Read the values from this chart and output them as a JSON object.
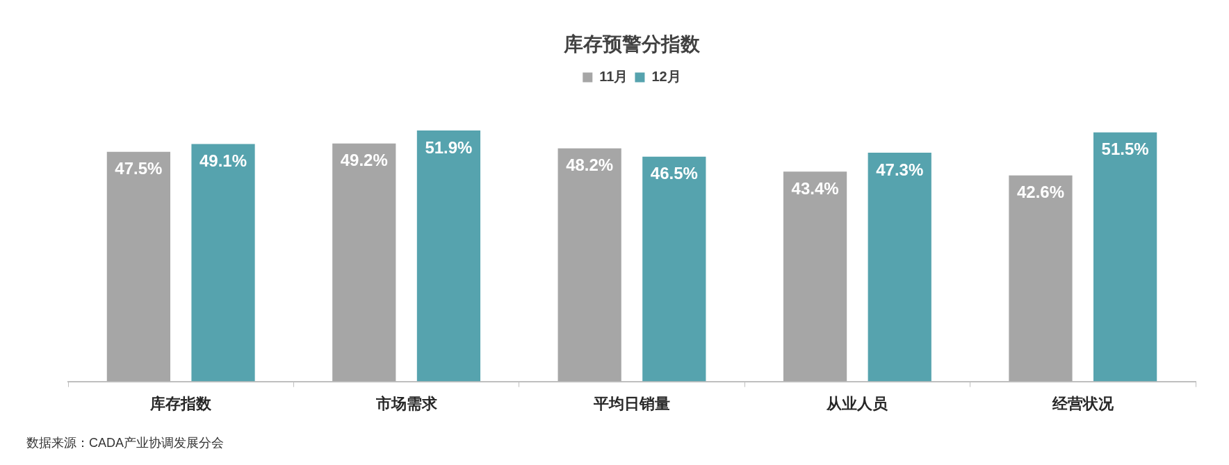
{
  "chart_data": {
    "type": "bar",
    "title": "库存预警分指数",
    "categories": [
      "库存指数",
      "市场需求",
      "平均日销量",
      "从业人员",
      "经营状况"
    ],
    "series": [
      {
        "name": "11月",
        "color": "#a6a6a6",
        "values": [
          47.5,
          49.2,
          48.2,
          43.4,
          42.6
        ],
        "value_labels": [
          "47.5%",
          "49.2%",
          "48.2%",
          "43.4%",
          "42.6%"
        ]
      },
      {
        "name": "12月",
        "color": "#56a3ae",
        "values": [
          49.1,
          51.9,
          46.5,
          47.3,
          51.5
        ],
        "value_labels": [
          "49.1%",
          "51.9%",
          "46.5%",
          "47.3%",
          "51.5%"
        ]
      }
    ],
    "legend": "top",
    "grid": false,
    "annotations": [
      "数据来源：CADA产业协调发展分会"
    ]
  }
}
